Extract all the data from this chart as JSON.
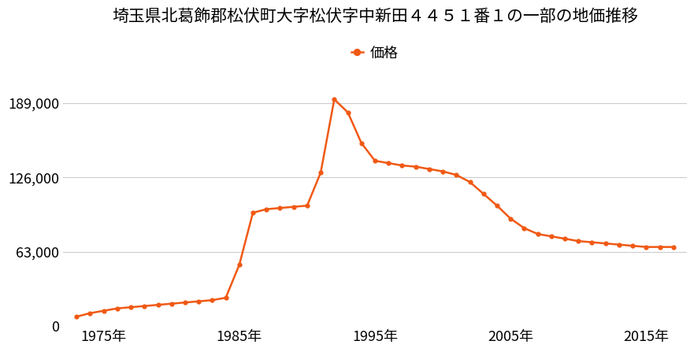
{
  "title": "埼玉県北葛飾郡松伏町大字松伏字中新田４４５１番１の一部の地価推移",
  "legend_label": "価格",
  "line_color": "#f05914",
  "marker_color": "#f05914",
  "bg_color": "#ffffff",
  "years": [
    1973,
    1974,
    1975,
    1976,
    1977,
    1978,
    1979,
    1980,
    1981,
    1982,
    1983,
    1984,
    1985,
    1986,
    1987,
    1988,
    1989,
    1990,
    1991,
    1992,
    1993,
    1994,
    1995,
    1996,
    1997,
    1998,
    1999,
    2000,
    2001,
    2002,
    2003,
    2004,
    2005,
    2006,
    2007,
    2008,
    2009,
    2010,
    2011,
    2012,
    2013,
    2014,
    2015,
    2016,
    2017
  ],
  "values": [
    8000,
    11000,
    13000,
    15000,
    16000,
    17000,
    18000,
    19000,
    20000,
    21000,
    22000,
    24000,
    52000,
    96000,
    99000,
    100000,
    101000,
    102000,
    130000,
    192000,
    181000,
    155000,
    140000,
    138000,
    136000,
    135000,
    133000,
    131000,
    128000,
    122000,
    112000,
    102000,
    91000,
    83000,
    78000,
    76000,
    74000,
    72000,
    71000,
    70000,
    69000,
    68000,
    67000,
    67000,
    67000
  ],
  "yticks": [
    0,
    63000,
    126000,
    189000
  ],
  "xticks": [
    1975,
    1985,
    1995,
    2005,
    2015
  ],
  "xlim": [
    1972,
    2018
  ],
  "ylim": [
    0,
    210000
  ],
  "grid_color": "#cccccc",
  "title_fontsize": 15,
  "legend_fontsize": 13,
  "tick_fontsize": 13
}
